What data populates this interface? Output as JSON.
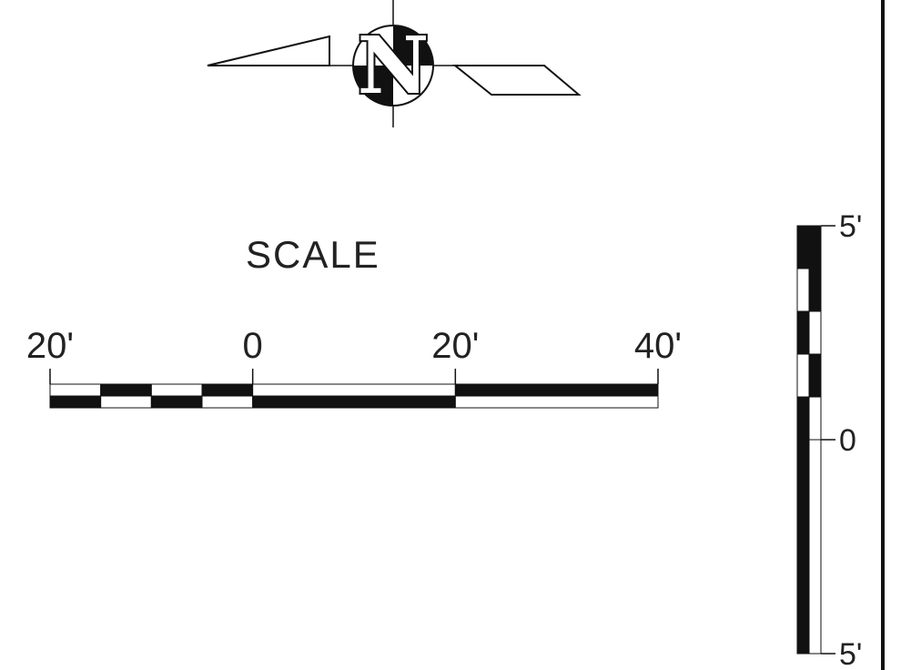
{
  "north_arrow": {
    "letter": "N",
    "icon": "north-arrow-icon"
  },
  "scale_bar": {
    "title": "SCALE",
    "labels": [
      "20'",
      "0",
      "20'",
      "40'"
    ],
    "unit_ft": 20,
    "segments": [
      {
        "from": -20,
        "to": -15,
        "top": "white",
        "bottom": "black"
      },
      {
        "from": -15,
        "to": -10,
        "top": "black",
        "bottom": "white"
      },
      {
        "from": -10,
        "to": -5,
        "top": "white",
        "bottom": "black"
      },
      {
        "from": -5,
        "to": 0,
        "top": "black",
        "bottom": "white"
      },
      {
        "from": 0,
        "to": 20,
        "top": "white",
        "bottom": "black"
      },
      {
        "from": 20,
        "to": 40,
        "top": "black",
        "bottom": "white"
      }
    ]
  },
  "vertical_scale": {
    "labels": [
      "5'",
      "0",
      "5'"
    ],
    "segments": [
      {
        "from": 5,
        "to": 4,
        "left": "black",
        "right": "black"
      },
      {
        "from": 4,
        "to": 3,
        "left": "white",
        "right": "black"
      },
      {
        "from": 3,
        "to": 2,
        "left": "black",
        "right": "white"
      },
      {
        "from": 2,
        "to": 1,
        "left": "white",
        "right": "black"
      },
      {
        "from": 1,
        "to": 0,
        "left": "black",
        "right": "white"
      },
      {
        "from": 0,
        "to": -5,
        "left": "black",
        "right": "white"
      }
    ]
  },
  "colors": {
    "ink": "#111111",
    "paper": "#ffffff"
  }
}
